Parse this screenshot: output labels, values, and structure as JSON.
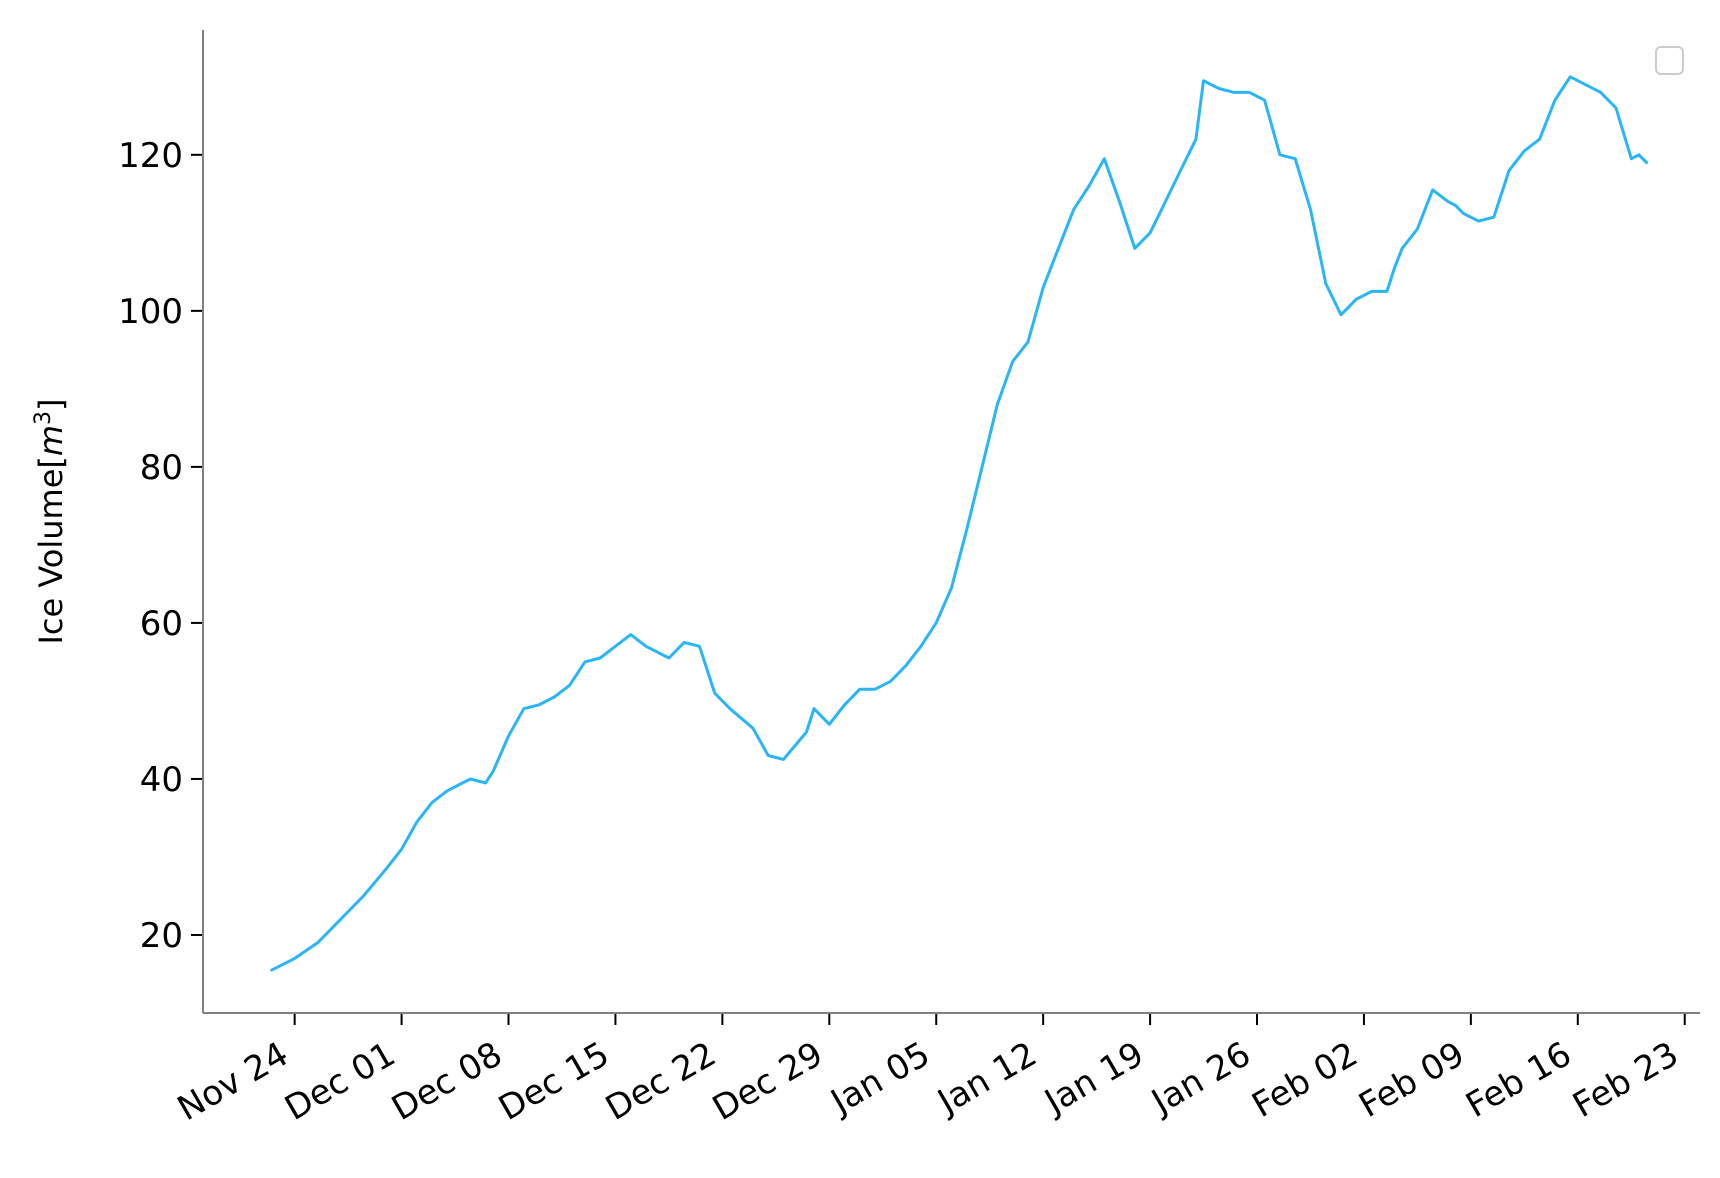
{
  "chart_data": {
    "type": "line",
    "ylabel": "Ice Volume[m³]",
    "ylabel_parts": {
      "main": "Ice Volume[",
      "italic": "m",
      "sup": "3",
      "close": "]"
    },
    "xlim": [
      "2024-11-18",
      "2025-02-24"
    ],
    "ylim": [
      10,
      136
    ],
    "x_ticks": [
      "2024-11-24",
      "2024-12-01",
      "2024-12-08",
      "2024-12-15",
      "2024-12-22",
      "2024-12-29",
      "2025-01-05",
      "2025-01-12",
      "2025-01-19",
      "2025-01-26",
      "2025-02-02",
      "2025-02-09",
      "2025-02-16",
      "2025-02-23"
    ],
    "x_tick_labels": [
      "Nov 24",
      "Dec 01",
      "Dec 08",
      "Dec 15",
      "Dec 22",
      "Dec 29",
      "Jan 05",
      "Jan 12",
      "Jan 19",
      "Jan 26",
      "Feb 02",
      "Feb 09",
      "Feb 16",
      "Feb 23"
    ],
    "y_ticks": [
      20,
      40,
      60,
      80,
      100,
      120
    ],
    "y_tick_labels": [
      "20",
      "40",
      "60",
      "80",
      "100",
      "120"
    ],
    "grid": false,
    "legend": "top-right, empty box",
    "colors": {
      "line": "#29b6f6",
      "axis": "#808080",
      "legend_border": "#cccccc"
    },
    "series": [
      {
        "x": [
          "2024-11-22T12:00",
          "2024-11-24T00:00",
          "2024-11-25T12:00",
          "2024-11-27T00:00",
          "2024-11-28T12:00",
          "2024-11-30T00:00",
          "2024-12-01T00:00",
          "2024-12-02T00:00",
          "2024-12-03T00:00",
          "2024-12-04T00:00",
          "2024-12-05T12:00",
          "2024-12-06T12:00",
          "2024-12-07T00:00",
          "2024-12-08T00:00",
          "2024-12-09T00:00",
          "2024-12-10T00:00",
          "2024-12-11T00:00",
          "2024-12-12T00:00",
          "2024-12-13T00:00",
          "2024-12-14T00:00",
          "2024-12-15T00:00",
          "2024-12-16T00:00",
          "2024-12-17T00:00",
          "2024-12-18T12:00",
          "2024-12-19T12:00",
          "2024-12-20T12:00",
          "2024-12-21T12:00",
          "2024-12-22T12:00",
          "2024-12-24T00:00",
          "2024-12-25T00:00",
          "2024-12-26T00:00",
          "2024-12-27T12:00",
          "2024-12-28T00:00",
          "2024-12-29T00:00",
          "2024-12-30T00:00",
          "2024-12-31T00:00",
          "2025-01-01T00:00",
          "2025-01-02T00:00",
          "2025-01-03T00:00",
          "2025-01-04T00:00",
          "2025-01-05T00:00",
          "2025-01-06T00:00",
          "2025-01-07T00:00",
          "2025-01-08T00:00",
          "2025-01-09T00:00",
          "2025-01-10T00:00",
          "2025-01-11T00:00",
          "2025-01-12T00:00",
          "2025-01-13T00:00",
          "2025-01-14T00:00",
          "2025-01-15T00:00",
          "2025-01-16T00:00",
          "2025-01-17T00:00",
          "2025-01-18T00:00",
          "2025-01-19T00:00",
          "2025-01-20T00:00",
          "2025-01-21T00:00",
          "2025-01-22T00:00",
          "2025-01-22T12:00",
          "2025-01-23T12:00",
          "2025-01-24T12:00",
          "2025-01-25T12:00",
          "2025-01-26T12:00",
          "2025-01-27T12:00",
          "2025-01-28T12:00",
          "2025-01-29T12:00",
          "2025-01-30T12:00",
          "2025-01-31T12:00",
          "2025-02-01T12:00",
          "2025-02-02T12:00",
          "2025-02-03T12:00",
          "2025-02-04T00:00",
          "2025-02-04T12:00",
          "2025-02-05T12:00",
          "2025-02-06T00:00",
          "2025-02-06T12:00",
          "2025-02-07T12:00",
          "2025-02-08T00:00",
          "2025-02-08T12:00",
          "2025-02-09T12:00",
          "2025-02-10T12:00",
          "2025-02-11T12:00",
          "2025-02-12T12:00",
          "2025-02-13T12:00",
          "2025-02-14T12:00",
          "2025-02-15T12:00",
          "2025-02-16T12:00",
          "2025-02-17T12:00",
          "2025-02-18T12:00",
          "2025-02-19T12:00",
          "2025-02-20T00:00",
          "2025-02-20T12:00"
        ],
        "y": [
          15.5,
          17.0,
          19.0,
          22.0,
          25.0,
          28.5,
          31.0,
          34.5,
          37.0,
          38.5,
          40.0,
          39.5,
          41.0,
          45.5,
          49.0,
          49.5,
          50.5,
          52.0,
          55.0,
          55.5,
          57.0,
          58.5,
          57.0,
          55.5,
          57.5,
          57.0,
          51.0,
          49.0,
          46.5,
          43.0,
          42.5,
          46.0,
          49.0,
          47.0,
          49.5,
          51.5,
          51.5,
          52.5,
          54.5,
          57.0,
          60.0,
          64.5,
          72.0,
          80.0,
          88.0,
          93.5,
          96.0,
          103.0,
          108.0,
          113.0,
          116.0,
          119.5,
          114.0,
          108.0,
          110.0,
          114.0,
          118.0,
          122.0,
          129.5,
          128.5,
          128.0,
          128.0,
          127.0,
          120.0,
          119.5,
          113.0,
          103.5,
          99.5,
          101.5,
          102.5,
          102.5,
          105.5,
          108.0,
          110.5,
          113.0,
          115.5,
          114.0,
          113.5,
          112.5,
          111.5,
          112.0,
          118.0,
          120.5,
          122.0,
          127.0,
          130.0,
          129.0,
          128.0,
          126.0,
          119.5,
          120.0,
          119.0
        ]
      }
    ]
  }
}
